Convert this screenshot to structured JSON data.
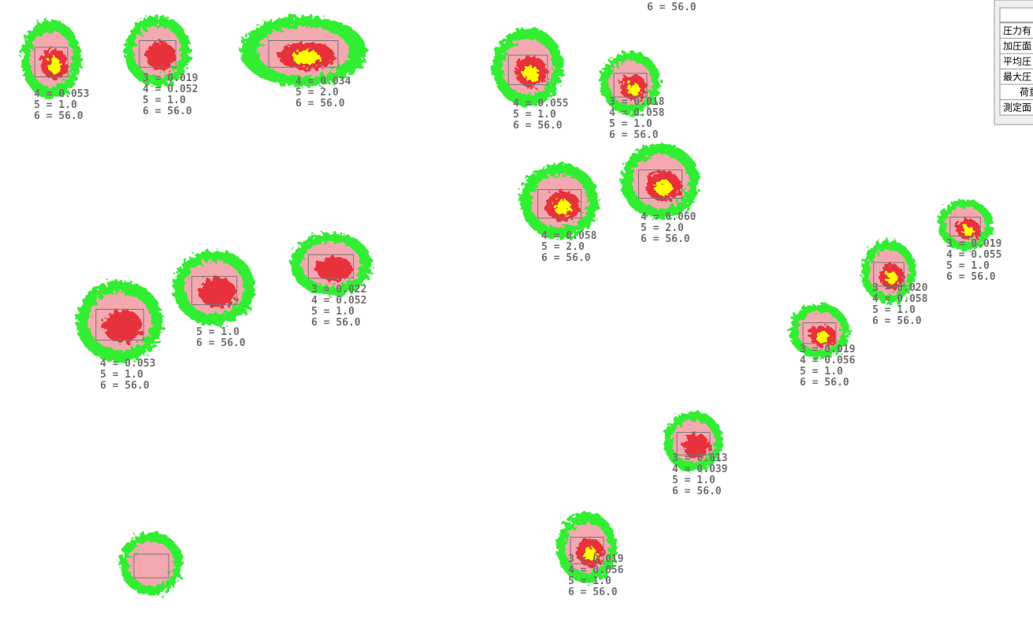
{
  "labels": [
    {
      "lines": [
        "4 = 0.053",
        "5 = 1.0",
        "6 = 56.0"
      ]
    },
    {
      "lines": [
        "3 = 0.019",
        "4 = 0.052",
        "5 = 1.0",
        "6 = 56.0"
      ]
    },
    {
      "lines": [
        "4 = 0.034",
        "5 = 2.0",
        "6 = 56.0"
      ]
    },
    {
      "lines": [
        "6 = 56.0"
      ]
    },
    {
      "lines": [
        "4 = 0.055",
        "5 = 1.0",
        "6 = 56.0"
      ]
    },
    {
      "lines": [
        "3 = 0.018",
        "4 = 0.058",
        "5 = 1.0",
        "6 = 56.0"
      ]
    },
    {
      "lines": [
        "4 = 0.058",
        "5 = 2.0",
        "6 = 56.0"
      ]
    },
    {
      "lines": [
        "4 = 0.060",
        "5 = 2.0",
        "6 = 56.0"
      ]
    },
    {
      "lines": [
        "3 = 0.019",
        "4 = 0.055",
        "5 = 1.0",
        "6 = 56.0"
      ]
    },
    {
      "lines": [
        "3 = 0.020",
        "4 = 0.058",
        "5 = 1.0",
        "6 = 56.0"
      ]
    },
    {
      "lines": [
        "3 = 0.022",
        "4 = 0.052",
        "5 = 1.0",
        "6 = 56.0"
      ]
    },
    {
      "lines": [
        "5 = 1.0",
        "6 = 56.0"
      ]
    },
    {
      "lines": [
        "4 = 0.053",
        "5 = 1.0",
        "6 = 56.0"
      ]
    },
    {
      "lines": [
        "3 = 0.019",
        "4 = 0.056",
        "5 = 1.0",
        "6 = 56.0"
      ]
    },
    {
      "lines": [
        "3 = 0.013",
        "4 = 0.039",
        "5 = 1.0",
        "6 = 56.0"
      ]
    },
    {
      "lines": [
        "3 = 0.019",
        "4 = 0.056",
        "5 = 1.0",
        "6 = 56.0"
      ]
    }
  ],
  "panel": {
    "rows": [
      "圧力有",
      "加圧面",
      "平均圧",
      "最大圧",
      "荷重",
      "測定面"
    ]
  }
}
